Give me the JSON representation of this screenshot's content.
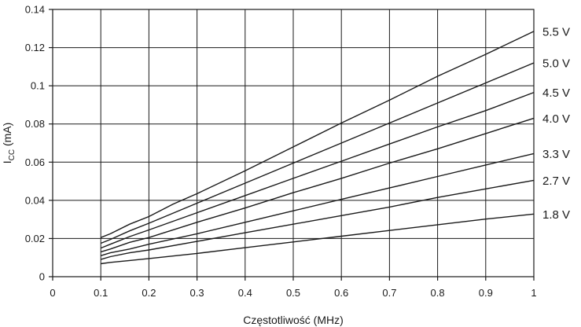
{
  "chart_data": {
    "type": "line",
    "title": "",
    "xlabel": "Częstotliwość (MHz)",
    "ylabel_main": "I",
    "ylabel_sub": "CC",
    "ylabel_unit": " (mA)",
    "xlim": [
      0,
      1
    ],
    "ylim": [
      0,
      0.14
    ],
    "grid": true,
    "x_ticks": [
      {
        "value": 0,
        "label": "0"
      },
      {
        "value": 0.1,
        "label": "0.1"
      },
      {
        "value": 0.2,
        "label": "0.2"
      },
      {
        "value": 0.3,
        "label": "0.3"
      },
      {
        "value": 0.4,
        "label": "0.4"
      },
      {
        "value": 0.5,
        "label": "0.5"
      },
      {
        "value": 0.6,
        "label": "0.6"
      },
      {
        "value": 0.7,
        "label": "0.7"
      },
      {
        "value": 0.8,
        "label": "0.8"
      },
      {
        "value": 0.9,
        "label": "0.9"
      },
      {
        "value": 1.0,
        "label": "1"
      }
    ],
    "y_ticks": [
      {
        "value": 0,
        "label": "0"
      },
      {
        "value": 0.02,
        "label": "0.02"
      },
      {
        "value": 0.04,
        "label": "0.04"
      },
      {
        "value": 0.06,
        "label": "0.06"
      },
      {
        "value": 0.08,
        "label": "0.08"
      },
      {
        "value": 0.1,
        "label": "0.1"
      },
      {
        "value": 0.12,
        "label": "0.12"
      },
      {
        "value": 0.14,
        "label": "0.14"
      }
    ],
    "series": [
      {
        "name": "5.5 V",
        "x": [
          0.1,
          0.12,
          0.16,
          0.2,
          0.25,
          0.3,
          0.4,
          0.5,
          0.6,
          0.7,
          0.8,
          0.9,
          1.0
        ],
        "y": [
          0.0205,
          0.0225,
          0.0275,
          0.0315,
          0.038,
          0.0435,
          0.0555,
          0.068,
          0.0805,
          0.0925,
          0.105,
          0.1165,
          0.1285
        ]
      },
      {
        "name": "5.0 V",
        "x": [
          0.1,
          0.12,
          0.16,
          0.2,
          0.3,
          0.4,
          0.5,
          0.6,
          0.7,
          0.8,
          0.9,
          1.0
        ],
        "y": [
          0.0175,
          0.0195,
          0.024,
          0.028,
          0.0385,
          0.049,
          0.0595,
          0.07,
          0.0805,
          0.091,
          0.1015,
          0.112
        ]
      },
      {
        "name": "4.5 V",
        "x": [
          0.1,
          0.12,
          0.16,
          0.2,
          0.3,
          0.4,
          0.5,
          0.6,
          0.7,
          0.8,
          0.9,
          1.0
        ],
        "y": [
          0.015,
          0.017,
          0.021,
          0.0245,
          0.0335,
          0.0425,
          0.0515,
          0.0605,
          0.0695,
          0.0785,
          0.087,
          0.0965
        ]
      },
      {
        "name": "4.0 V",
        "x": [
          0.1,
          0.12,
          0.16,
          0.2,
          0.3,
          0.4,
          0.5,
          0.6,
          0.7,
          0.8,
          0.9,
          1.0
        ],
        "y": [
          0.013,
          0.0145,
          0.018,
          0.0205,
          0.0285,
          0.036,
          0.044,
          0.0515,
          0.0595,
          0.067,
          0.075,
          0.083
        ]
      },
      {
        "name": "3.3 V",
        "x": [
          0.1,
          0.12,
          0.16,
          0.2,
          0.3,
          0.4,
          0.5,
          0.6,
          0.7,
          0.8,
          0.9,
          1.0
        ],
        "y": [
          0.011,
          0.0125,
          0.0145,
          0.017,
          0.0225,
          0.0285,
          0.0345,
          0.0405,
          0.0465,
          0.0525,
          0.0585,
          0.0645
        ]
      },
      {
        "name": "2.7 V",
        "x": [
          0.1,
          0.12,
          0.16,
          0.2,
          0.3,
          0.4,
          0.5,
          0.6,
          0.7,
          0.8,
          0.9,
          1.0
        ],
        "y": [
          0.009,
          0.0105,
          0.0125,
          0.014,
          0.0185,
          0.023,
          0.0275,
          0.032,
          0.0365,
          0.0415,
          0.046,
          0.0505
        ]
      },
      {
        "name": "1.8 V",
        "x": [
          0.1,
          0.12,
          0.16,
          0.2,
          0.3,
          0.4,
          0.5,
          0.6,
          0.7,
          0.8,
          0.9,
          1.0
        ],
        "y": [
          0.0068,
          0.0075,
          0.0085,
          0.0095,
          0.0122,
          0.0152,
          0.0182,
          0.0212,
          0.0242,
          0.0272,
          0.0302,
          0.0328
        ]
      }
    ]
  }
}
